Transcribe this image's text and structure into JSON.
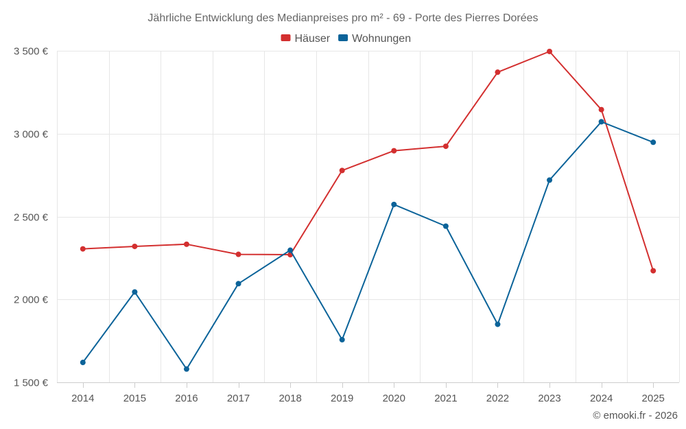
{
  "chart_data": {
    "type": "line",
    "title": "Jährliche Entwicklung des Medianpreises pro m² - 69 - Porte des Pierres Dorées",
    "categories": [
      "2014",
      "2015",
      "2016",
      "2017",
      "2018",
      "2019",
      "2020",
      "2021",
      "2022",
      "2023",
      "2024",
      "2025"
    ],
    "series": [
      {
        "name": "Häuser",
        "color": "#d32f2f",
        "values": [
          2305,
          2320,
          2333,
          2272,
          2270,
          2778,
          2897,
          2924,
          3371,
          3496,
          3145,
          2173
        ]
      },
      {
        "name": "Wohnungen",
        "color": "#0b6399",
        "values": [
          1620,
          2045,
          1580,
          2095,
          2297,
          1757,
          2573,
          2442,
          1850,
          2720,
          3072,
          2948
        ]
      }
    ],
    "ylim": [
      1500,
      3500
    ],
    "yticks": [
      1500,
      2000,
      2500,
      3000,
      3500
    ],
    "ytick_labels": [
      "1 500 €",
      "2 000 €",
      "2 500 €",
      "3 000 €",
      "3 500 €"
    ],
    "xlabel": "",
    "ylabel": "",
    "legend_position": "top-center",
    "grid": true
  },
  "credit": "© emooki.fr - 2026"
}
